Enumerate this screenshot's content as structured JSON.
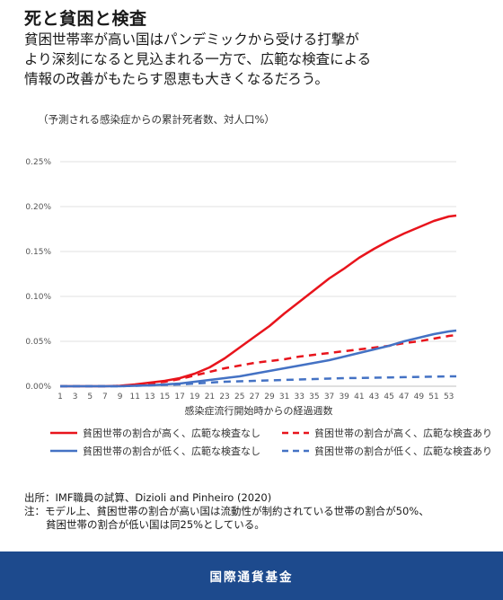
{
  "header": {
    "title": "死と貧困と検査",
    "subtitle_lines": [
      "貧困世帯率が高い国はパンデミックから受ける打撃が",
      "より深刻になると見込まれる一方で、広範な検査による",
      "情報の改善がもたらす恩恵も大きくなるだろう。"
    ]
  },
  "unit_note": "（予測される感染症からの累計死者数、対人口%）",
  "chart_data": {
    "type": "line",
    "xlabel": "感染症流行開始時からの経過週数",
    "ylabel": "",
    "xlim": [
      1,
      54
    ],
    "ylim": [
      0,
      0.25
    ],
    "x_ticks": [
      1,
      3,
      5,
      7,
      9,
      11,
      13,
      15,
      17,
      19,
      21,
      23,
      25,
      27,
      29,
      31,
      33,
      35,
      37,
      39,
      41,
      43,
      45,
      47,
      49,
      51,
      53
    ],
    "y_ticks": [
      0,
      0.05,
      0.1,
      0.15,
      0.2,
      0.25
    ],
    "y_tick_labels": [
      "0.00%",
      "0.05%",
      "0.10%",
      "0.15%",
      "0.20%",
      "0.25%"
    ],
    "grid": "horizontal",
    "legend_position": "bottom",
    "x": [
      1,
      3,
      5,
      7,
      9,
      11,
      13,
      15,
      17,
      19,
      21,
      23,
      25,
      27,
      29,
      31,
      33,
      35,
      37,
      39,
      41,
      43,
      45,
      47,
      49,
      51,
      53,
      54
    ],
    "series": [
      {
        "name": "貧困世帯の割合が高く、広範な検査なし",
        "color": "#e8141c",
        "dash": "solid",
        "values": [
          0,
          0,
          0,
          0,
          0.0005,
          0.002,
          0.004,
          0.006,
          0.009,
          0.014,
          0.021,
          0.031,
          0.043,
          0.055,
          0.067,
          0.081,
          0.094,
          0.107,
          0.12,
          0.131,
          0.143,
          0.153,
          0.162,
          0.17,
          0.177,
          0.184,
          0.189,
          0.19
        ]
      },
      {
        "name": "貧困世帯の割合が高く、広範な検査あり",
        "color": "#e8141c",
        "dash": "dashed",
        "values": [
          0,
          0,
          0,
          0,
          0.0005,
          0.0015,
          0.003,
          0.005,
          0.008,
          0.012,
          0.016,
          0.02,
          0.023,
          0.026,
          0.028,
          0.03,
          0.033,
          0.035,
          0.037,
          0.039,
          0.041,
          0.043,
          0.045,
          0.048,
          0.05,
          0.053,
          0.056,
          0.057
        ]
      },
      {
        "name": "貧困世帯の割合が低く、広範な検査なし",
        "color": "#4472c4",
        "dash": "solid",
        "values": [
          0,
          0,
          0,
          0,
          0,
          0.0005,
          0.001,
          0.002,
          0.003,
          0.005,
          0.007,
          0.009,
          0.011,
          0.014,
          0.017,
          0.02,
          0.023,
          0.026,
          0.029,
          0.033,
          0.037,
          0.041,
          0.045,
          0.05,
          0.054,
          0.058,
          0.061,
          0.062
        ]
      },
      {
        "name": "貧困世帯の割合が低く、広範な検査あり",
        "color": "#4472c4",
        "dash": "dashed",
        "values": [
          0,
          0,
          0,
          0,
          0,
          0.0005,
          0.001,
          0.0015,
          0.002,
          0.003,
          0.004,
          0.005,
          0.0055,
          0.006,
          0.0065,
          0.007,
          0.0075,
          0.008,
          0.0085,
          0.009,
          0.0092,
          0.0095,
          0.0098,
          0.0101,
          0.0104,
          0.0107,
          0.011,
          0.011
        ]
      }
    ]
  },
  "source": {
    "line1": "出所：IMF職員の試算、Dizioli and Pinheiro (2020)",
    "line2": "注：モデル上、貧困世帯の割合が高い国は流動性が制約されている世帯の割合が50%、",
    "line3": "貧困世帯の割合が低い国は同25%としている。"
  },
  "footer": {
    "label": "国際通貨基金"
  }
}
